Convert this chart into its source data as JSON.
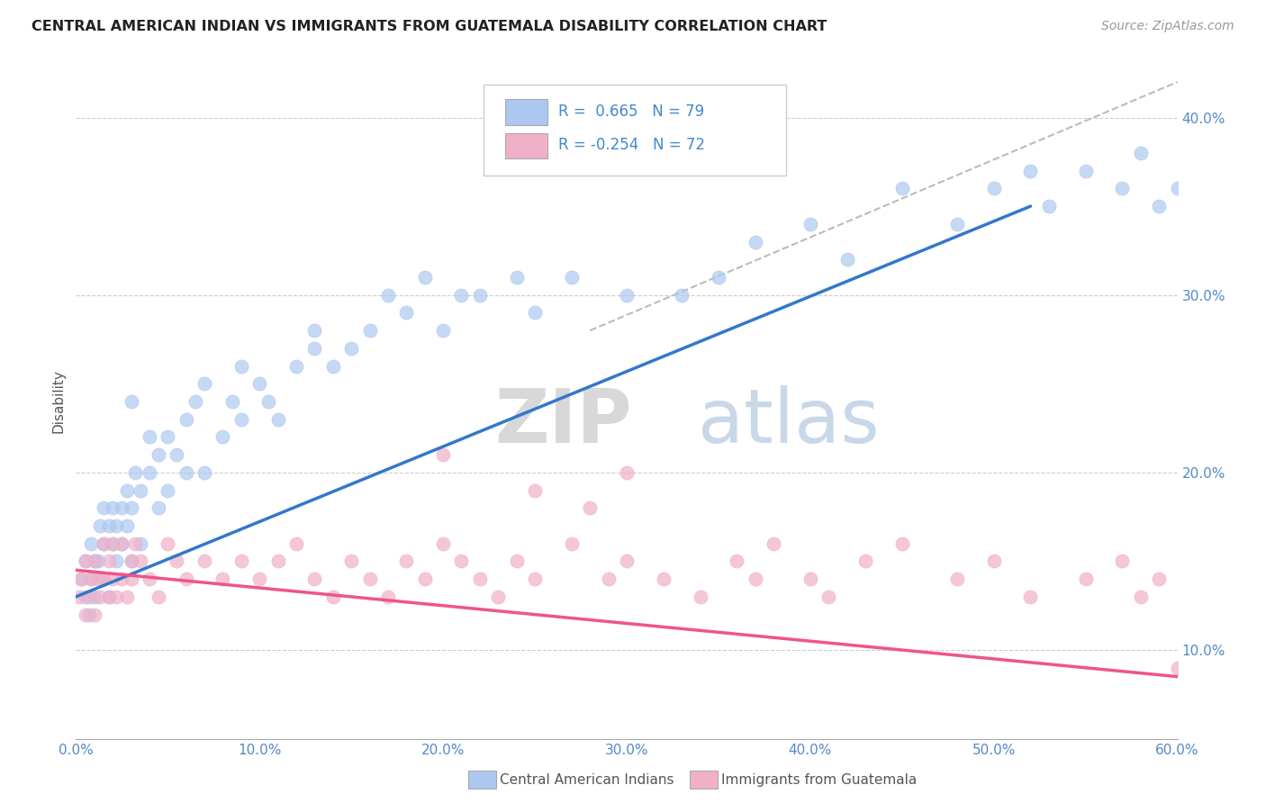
{
  "title": "CENTRAL AMERICAN INDIAN VS IMMIGRANTS FROM GUATEMALA DISABILITY CORRELATION CHART",
  "source": "Source: ZipAtlas.com",
  "ylabel": "Disability",
  "blue_R": 0.665,
  "blue_N": 79,
  "pink_R": -0.254,
  "pink_N": 72,
  "blue_color": "#adc8f0",
  "pink_color": "#f0b0c8",
  "blue_line_color": "#3377cc",
  "pink_line_color": "#ee5588",
  "legend_label_blue": "Central American Indians",
  "legend_label_pink": "Immigrants from Guatemala",
  "xlim": [
    0.0,
    60.0
  ],
  "ylim": [
    5.0,
    43.0
  ],
  "blue_trend_x0": 0.0,
  "blue_trend_y0": 13.0,
  "blue_trend_x1": 52.0,
  "blue_trend_y1": 35.0,
  "pink_trend_x0": 0.0,
  "pink_trend_y0": 14.5,
  "pink_trend_x1": 60.0,
  "pink_trend_y1": 8.5,
  "diag_x0": 28.0,
  "diag_y0": 28.0,
  "diag_x1": 60.0,
  "diag_y1": 42.0,
  "blue_x": [
    0.3,
    0.5,
    0.5,
    0.7,
    0.8,
    0.8,
    1.0,
    1.0,
    1.2,
    1.3,
    1.5,
    1.5,
    1.5,
    1.8,
    1.8,
    2.0,
    2.0,
    2.2,
    2.2,
    2.5,
    2.5,
    2.8,
    2.8,
    3.0,
    3.0,
    3.2,
    3.5,
    3.5,
    4.0,
    4.0,
    4.5,
    4.5,
    5.0,
    5.0,
    5.5,
    6.0,
    6.5,
    7.0,
    7.0,
    8.0,
    8.5,
    9.0,
    9.0,
    10.0,
    10.5,
    11.0,
    12.0,
    13.0,
    14.0,
    15.0,
    16.0,
    17.0,
    18.0,
    19.0,
    20.0,
    21.0,
    22.0,
    24.0,
    25.0,
    27.0,
    30.0,
    33.0,
    35.0,
    37.0,
    40.0,
    42.0,
    45.0,
    48.0,
    50.0,
    52.0,
    53.0,
    55.0,
    57.0,
    58.0,
    59.0,
    60.0,
    6.0,
    3.0,
    13.0
  ],
  "blue_y": [
    14,
    13,
    15,
    12,
    14,
    16,
    13,
    15,
    15,
    17,
    14,
    16,
    18,
    13,
    17,
    16,
    18,
    15,
    17,
    16,
    18,
    17,
    19,
    15,
    18,
    20,
    16,
    19,
    20,
    22,
    18,
    21,
    19,
    22,
    21,
    23,
    24,
    20,
    25,
    22,
    24,
    23,
    26,
    25,
    24,
    23,
    26,
    27,
    26,
    27,
    28,
    30,
    29,
    31,
    28,
    30,
    30,
    31,
    29,
    31,
    30,
    30,
    31,
    33,
    34,
    32,
    36,
    34,
    36,
    37,
    35,
    37,
    36,
    38,
    35,
    36,
    20,
    24,
    28
  ],
  "pink_x": [
    0.2,
    0.3,
    0.5,
    0.5,
    0.7,
    0.8,
    1.0,
    1.0,
    1.2,
    1.3,
    1.5,
    1.5,
    1.8,
    1.8,
    2.0,
    2.0,
    2.2,
    2.5,
    2.5,
    2.8,
    3.0,
    3.0,
    3.2,
    3.5,
    4.0,
    4.5,
    5.0,
    5.5,
    6.0,
    7.0,
    8.0,
    9.0,
    10.0,
    11.0,
    12.0,
    13.0,
    14.0,
    15.0,
    16.0,
    17.0,
    18.0,
    19.0,
    20.0,
    21.0,
    22.0,
    23.0,
    24.0,
    25.0,
    27.0,
    29.0,
    30.0,
    32.0,
    34.0,
    36.0,
    37.0,
    38.0,
    40.0,
    41.0,
    43.0,
    45.0,
    48.0,
    50.0,
    52.0,
    55.0,
    57.0,
    58.0,
    59.0,
    60.0,
    20.0,
    25.0,
    28.0,
    30.0
  ],
  "pink_y": [
    13,
    14,
    12,
    15,
    13,
    14,
    12,
    15,
    14,
    13,
    14,
    16,
    13,
    15,
    14,
    16,
    13,
    14,
    16,
    13,
    15,
    14,
    16,
    15,
    14,
    13,
    16,
    15,
    14,
    15,
    14,
    15,
    14,
    15,
    16,
    14,
    13,
    15,
    14,
    13,
    15,
    14,
    16,
    15,
    14,
    13,
    15,
    14,
    16,
    14,
    15,
    14,
    13,
    15,
    14,
    16,
    14,
    13,
    15,
    16,
    14,
    15,
    13,
    14,
    15,
    13,
    14,
    9,
    21,
    19,
    18,
    20
  ]
}
